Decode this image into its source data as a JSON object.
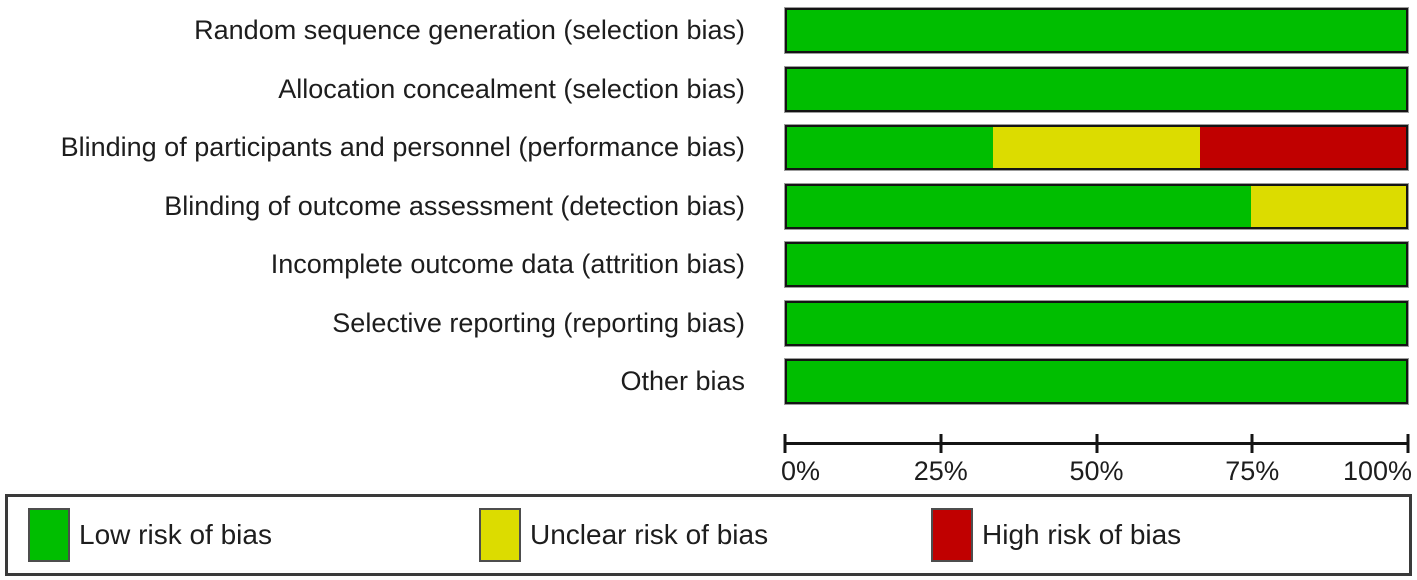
{
  "chart_data": {
    "type": "bar",
    "orientation": "horizontal",
    "stacked": true,
    "unit": "percent",
    "categories": [
      "Random sequence generation (selection bias)",
      "Allocation concealment (selection bias)",
      "Blinding of participants and personnel (performance bias)",
      "Blinding of outcome assessment (detection bias)",
      "Incomplete outcome data (attrition bias)",
      "Selective reporting (reporting bias)",
      "Other bias"
    ],
    "series": [
      {
        "key": "low",
        "name": "Low risk of bias",
        "color": "#00BE00",
        "values": [
          100,
          100,
          33.33,
          75,
          100,
          100,
          100
        ]
      },
      {
        "key": "unclear",
        "name": "Unclear risk of bias",
        "color": "#DCDC00",
        "values": [
          0,
          0,
          33.33,
          25,
          0,
          0,
          0
        ]
      },
      {
        "key": "high",
        "name": "High risk of bias",
        "color": "#C00000",
        "values": [
          0,
          0,
          33.34,
          0,
          0,
          0,
          0
        ]
      }
    ],
    "xlim": [
      0,
      100
    ],
    "x_ticks": [
      {
        "label": "0%",
        "pos": 0
      },
      {
        "label": "25%",
        "pos": 25
      },
      {
        "label": "50%",
        "pos": 50
      },
      {
        "label": "75%",
        "pos": 75
      },
      {
        "label": "100%",
        "pos": 100
      }
    ],
    "legend_position": "bottom",
    "grid": false
  },
  "colors": {
    "bar_border": "#141414",
    "axis": "#141414",
    "legend_border": "#3a3a3a",
    "background": "#ffffff"
  }
}
